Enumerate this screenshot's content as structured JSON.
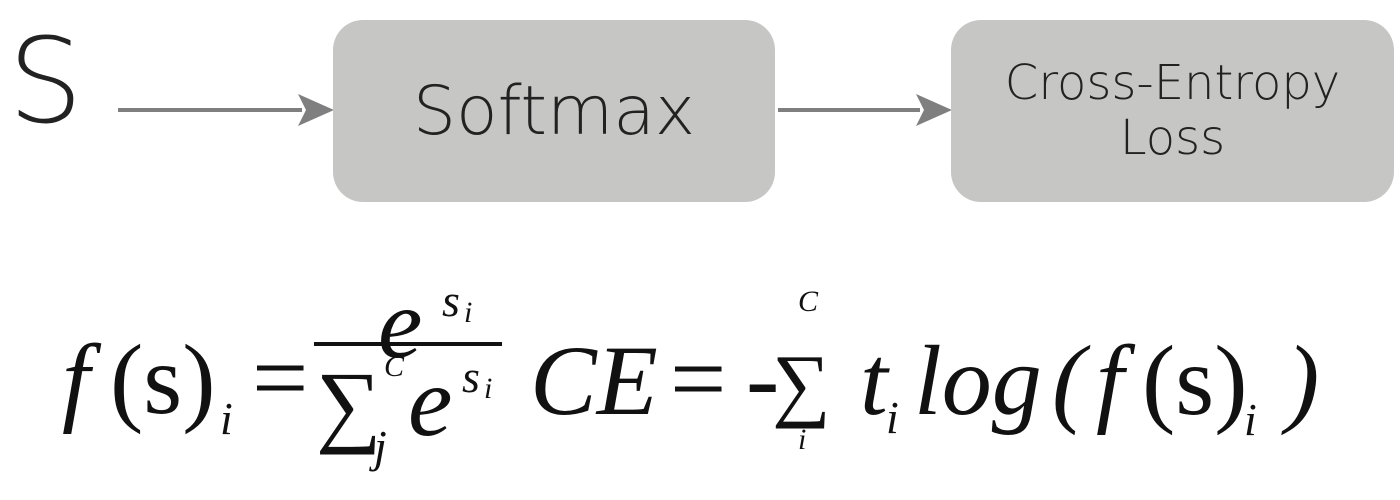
{
  "diagram": {
    "input_label": "S",
    "nodes": [
      {
        "id": "softmax",
        "label": "Softmax"
      },
      {
        "id": "cross_entropy",
        "label_line1": "Cross-Entropy",
        "label_line2": "Loss"
      }
    ],
    "edges": [
      {
        "from": "S",
        "to": "softmax"
      },
      {
        "from": "softmax",
        "to": "cross_entropy"
      }
    ],
    "colors": {
      "box": "#c6c6c5",
      "arrow": "#7f7f7f",
      "text": "#222222"
    }
  },
  "formulas": {
    "softmax": {
      "lhs_f": "f",
      "lhs_arg": "(s)",
      "lhs_sub": "i",
      "equals": "=",
      "num_base": "e",
      "num_sup": "s",
      "num_sup_sub": "i",
      "den_sigma": "∑",
      "den_sigma_sup": "C",
      "den_sigma_sub": "j",
      "den_base": "e",
      "den_sup": "s",
      "den_sup_sub": "i"
    },
    "cross_entropy": {
      "lhs": "CE",
      "equals": "=",
      "minus": "-",
      "sigma": "∑",
      "sigma_sup": "C",
      "sigma_sub": "i",
      "t": "t",
      "t_sub": "i",
      "log": "log",
      "open_paren": "(",
      "f": "f",
      "arg": "(s)",
      "arg_sub": "i",
      "close_paren": ")"
    }
  }
}
